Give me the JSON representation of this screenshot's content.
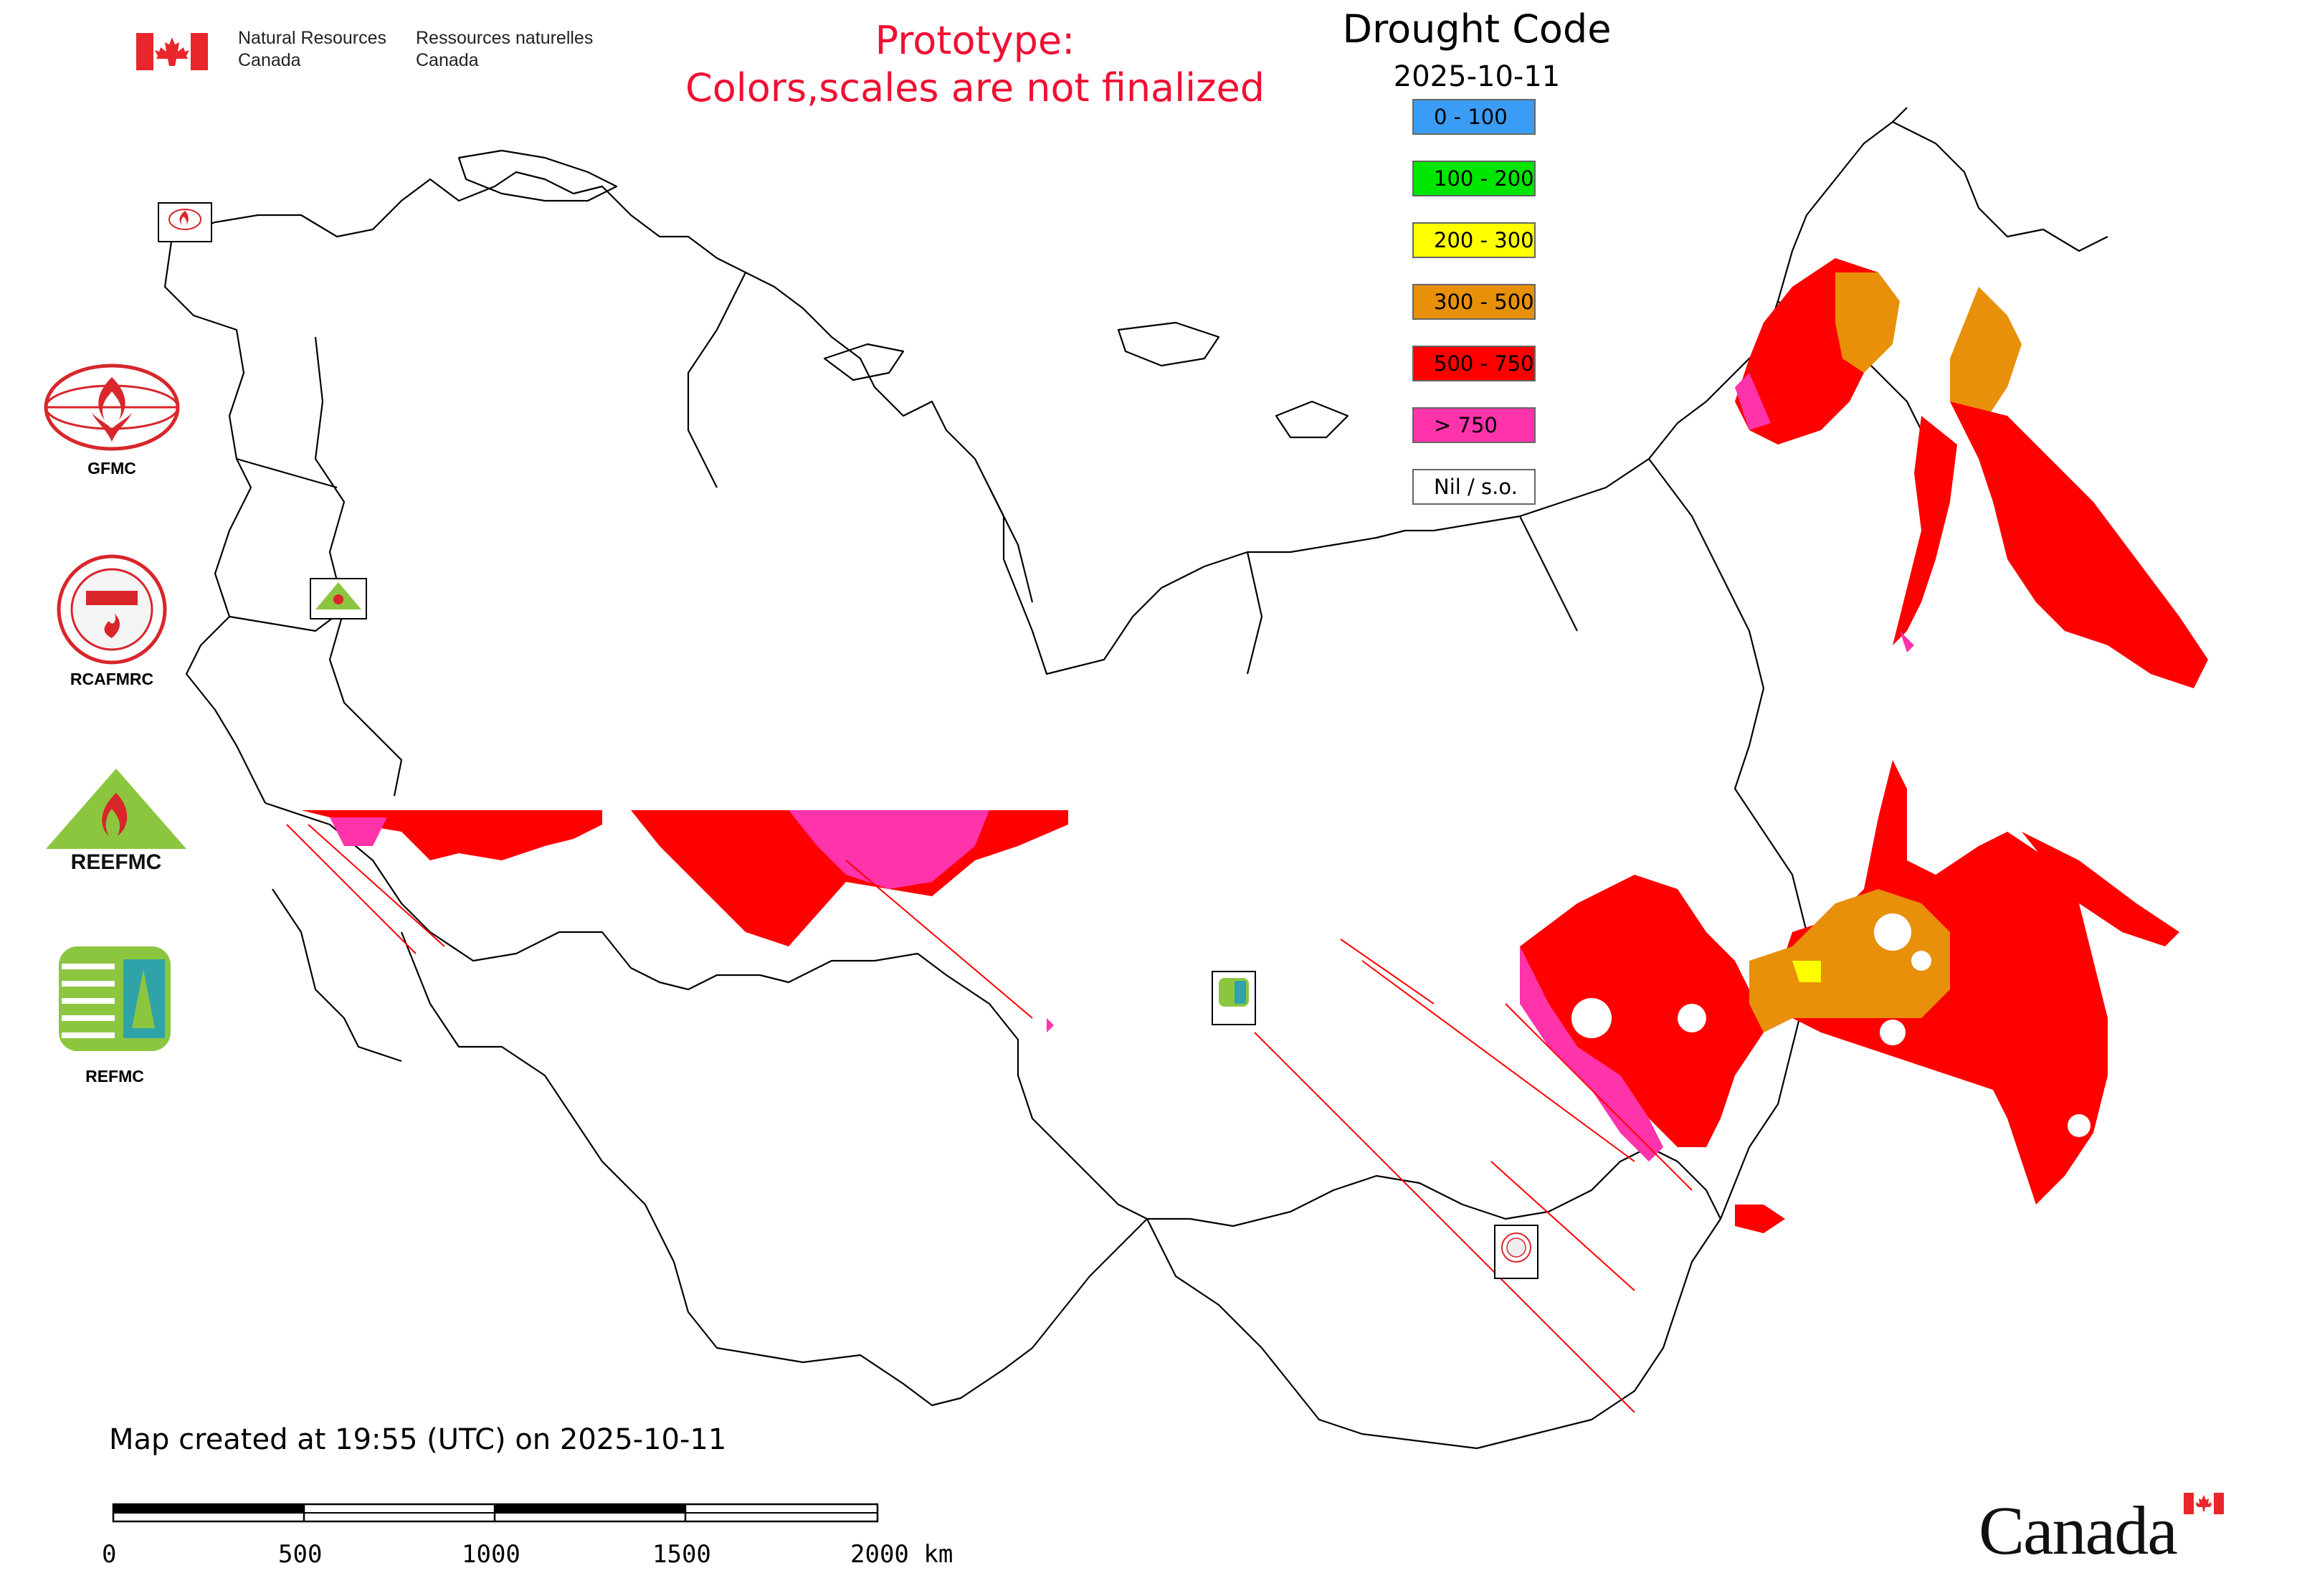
{
  "header": {
    "agency_en": [
      "Natural Resources",
      "Canada"
    ],
    "agency_fr": [
      "Ressources naturelles",
      "Canada"
    ],
    "prototype_lines": [
      "Prototype:",
      "Colors,scales are not finalized"
    ]
  },
  "legend": {
    "title": "Drought Code",
    "date": "2025-10-11",
    "items": [
      {
        "label": "0 - 100",
        "color": "#3b9cf5"
      },
      {
        "label": "100 - 200",
        "color": "#00e600"
      },
      {
        "label": "200 - 300",
        "color": "#ffff00"
      },
      {
        "label": "300 - 500",
        "color": "#e8900a"
      },
      {
        "label": "500 - 750",
        "color": "#ff0000"
      },
      {
        "label": "> 750",
        "color": "#ff33aa"
      },
      {
        "label": "Nil / s.o.",
        "color": "#ffffff"
      }
    ]
  },
  "logos": {
    "gfmc": "GFMC",
    "rcafmrc": "RCAFMRC",
    "reefmc": "REEFMC",
    "refmc": "REFMC",
    "rcafmrc_badge": "RCAFMRC"
  },
  "footer": {
    "created": "Map created at 19:55 (UTC) on 2025-10-11",
    "scale_labels": [
      "0",
      "500",
      "1000",
      "1500",
      "2000 km"
    ],
    "wordmark": "Canada"
  },
  "colors": {
    "prototype_text": "#ee1133",
    "dc_500_750": "#ff0000",
    "dc_300_500": "#e8900a",
    "dc_over_750": "#ff33aa",
    "dc_200_300": "#ffff00"
  }
}
